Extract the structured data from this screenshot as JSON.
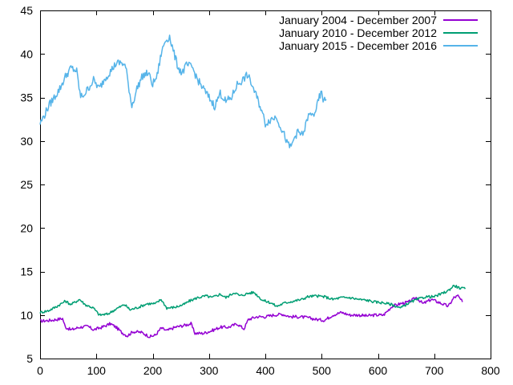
{
  "chart_data": {
    "type": "line",
    "title": "",
    "xlabel": "",
    "ylabel": "",
    "xlim": [
      0,
      800
    ],
    "ylim": [
      5,
      45
    ],
    "x_ticks": [
      0,
      100,
      200,
      300,
      400,
      500,
      600,
      700,
      800
    ],
    "y_ticks": [
      5,
      10,
      15,
      20,
      25,
      30,
      35,
      40,
      45
    ],
    "grid": false,
    "legend_position": "top-right",
    "series": [
      {
        "name": "January 2004 - December 2007",
        "color": "#9400d3",
        "points": [
          [
            0,
            9.3
          ],
          [
            20,
            9.4
          ],
          [
            40,
            9.6
          ],
          [
            45,
            8.6
          ],
          [
            55,
            8.3
          ],
          [
            70,
            8.6
          ],
          [
            85,
            8.7
          ],
          [
            95,
            8.3
          ],
          [
            110,
            8.6
          ],
          [
            125,
            9.0
          ],
          [
            135,
            8.6
          ],
          [
            145,
            8.0
          ],
          [
            155,
            7.6
          ],
          [
            165,
            8.1
          ],
          [
            180,
            8.0
          ],
          [
            195,
            7.5
          ],
          [
            205,
            7.7
          ],
          [
            215,
            8.5
          ],
          [
            225,
            8.2
          ],
          [
            240,
            8.6
          ],
          [
            255,
            8.8
          ],
          [
            268,
            9.0
          ],
          [
            275,
            7.9
          ],
          [
            290,
            7.9
          ],
          [
            305,
            8.2
          ],
          [
            320,
            8.6
          ],
          [
            335,
            8.6
          ],
          [
            350,
            9.0
          ],
          [
            362,
            8.4
          ],
          [
            370,
            9.5
          ],
          [
            385,
            9.8
          ],
          [
            400,
            9.8
          ],
          [
            415,
            10.0
          ],
          [
            430,
            10.1
          ],
          [
            445,
            9.8
          ],
          [
            460,
            9.8
          ],
          [
            475,
            9.7
          ],
          [
            490,
            9.5
          ],
          [
            505,
            9.4
          ],
          [
            520,
            10.0
          ],
          [
            535,
            10.3
          ],
          [
            550,
            10.0
          ],
          [
            565,
            10.0
          ],
          [
            580,
            9.9
          ],
          [
            595,
            10.0
          ],
          [
            610,
            10.0
          ],
          [
            625,
            11.0
          ],
          [
            640,
            11.3
          ],
          [
            655,
            11.5
          ],
          [
            668,
            12.0
          ],
          [
            680,
            11.3
          ],
          [
            695,
            11.8
          ],
          [
            710,
            11.4
          ],
          [
            725,
            11.0
          ],
          [
            735,
            12.0
          ],
          [
            742,
            12.2
          ],
          [
            750,
            11.5
          ]
        ]
      },
      {
        "name": "January 2010 - December 2012",
        "color": "#009e73",
        "points": [
          [
            0,
            10.3
          ],
          [
            15,
            10.5
          ],
          [
            30,
            11.0
          ],
          [
            45,
            11.6
          ],
          [
            55,
            11.2
          ],
          [
            70,
            11.8
          ],
          [
            80,
            11.2
          ],
          [
            95,
            10.8
          ],
          [
            105,
            10.0
          ],
          [
            120,
            10.1
          ],
          [
            135,
            10.7
          ],
          [
            150,
            11.2
          ],
          [
            160,
            10.6
          ],
          [
            175,
            10.9
          ],
          [
            190,
            11.3
          ],
          [
            205,
            11.3
          ],
          [
            215,
            11.8
          ],
          [
            225,
            10.8
          ],
          [
            240,
            10.9
          ],
          [
            255,
            11.2
          ],
          [
            265,
            11.6
          ],
          [
            280,
            12.0
          ],
          [
            295,
            12.2
          ],
          [
            305,
            12.0
          ],
          [
            320,
            12.4
          ],
          [
            330,
            12.0
          ],
          [
            345,
            12.6
          ],
          [
            355,
            12.2
          ],
          [
            370,
            12.5
          ],
          [
            380,
            12.6
          ],
          [
            395,
            11.7
          ],
          [
            410,
            11.4
          ],
          [
            420,
            11.0
          ],
          [
            435,
            11.4
          ],
          [
            450,
            11.6
          ],
          [
            465,
            11.8
          ],
          [
            475,
            12.1
          ],
          [
            490,
            12.2
          ],
          [
            505,
            12.1
          ],
          [
            520,
            11.8
          ],
          [
            535,
            12.0
          ],
          [
            550,
            12.0
          ],
          [
            565,
            11.8
          ],
          [
            580,
            11.7
          ],
          [
            595,
            11.5
          ],
          [
            610,
            11.4
          ],
          [
            625,
            11.2
          ],
          [
            640,
            10.8
          ],
          [
            655,
            11.4
          ],
          [
            670,
            11.8
          ],
          [
            685,
            12.1
          ],
          [
            700,
            12.1
          ],
          [
            715,
            12.5
          ],
          [
            725,
            12.8
          ],
          [
            735,
            13.4
          ],
          [
            745,
            13.1
          ],
          [
            755,
            13.0
          ]
        ]
      },
      {
        "name": "January 2015 - December 2016",
        "color": "#56b4e9",
        "points": [
          [
            0,
            32.0
          ],
          [
            8,
            33.0
          ],
          [
            15,
            34.0
          ],
          [
            25,
            35.0
          ],
          [
            35,
            36.0
          ],
          [
            45,
            37.4
          ],
          [
            55,
            38.4
          ],
          [
            65,
            38.0
          ],
          [
            72,
            35.0
          ],
          [
            80,
            35.5
          ],
          [
            95,
            37.0
          ],
          [
            105,
            36.0
          ],
          [
            115,
            37.2
          ],
          [
            125,
            38.0
          ],
          [
            135,
            38.9
          ],
          [
            145,
            39.0
          ],
          [
            152,
            38.5
          ],
          [
            158,
            36.0
          ],
          [
            163,
            34.0
          ],
          [
            172,
            36.0
          ],
          [
            182,
            37.5
          ],
          [
            192,
            37.8
          ],
          [
            200,
            36.5
          ],
          [
            208,
            37.5
          ],
          [
            215,
            40.0
          ],
          [
            222,
            41.5
          ],
          [
            230,
            42.0
          ],
          [
            238,
            40.0
          ],
          [
            245,
            38.5
          ],
          [
            252,
            37.8
          ],
          [
            260,
            38.7
          ],
          [
            270,
            38.5
          ],
          [
            280,
            37.0
          ],
          [
            290,
            36.0
          ],
          [
            300,
            35.0
          ],
          [
            310,
            34.0
          ],
          [
            320,
            35.5
          ],
          [
            330,
            34.5
          ],
          [
            340,
            35.0
          ],
          [
            350,
            36.5
          ],
          [
            360,
            37.0
          ],
          [
            368,
            37.6
          ],
          [
            376,
            36.5
          ],
          [
            385,
            35.0
          ],
          [
            392,
            33.8
          ],
          [
            400,
            32.0
          ],
          [
            410,
            32.5
          ],
          [
            420,
            32.8
          ],
          [
            428,
            31.5
          ],
          [
            435,
            30.5
          ],
          [
            440,
            29.5
          ],
          [
            446,
            29.3
          ],
          [
            452,
            30.5
          ],
          [
            458,
            31.0
          ],
          [
            465,
            30.7
          ],
          [
            470,
            31.3
          ],
          [
            475,
            32.7
          ],
          [
            480,
            33.0
          ],
          [
            485,
            32.9
          ],
          [
            492,
            34.0
          ],
          [
            496,
            35.0
          ],
          [
            500,
            35.5
          ],
          [
            504,
            34.5
          ],
          [
            508,
            34.8
          ]
        ]
      }
    ]
  }
}
